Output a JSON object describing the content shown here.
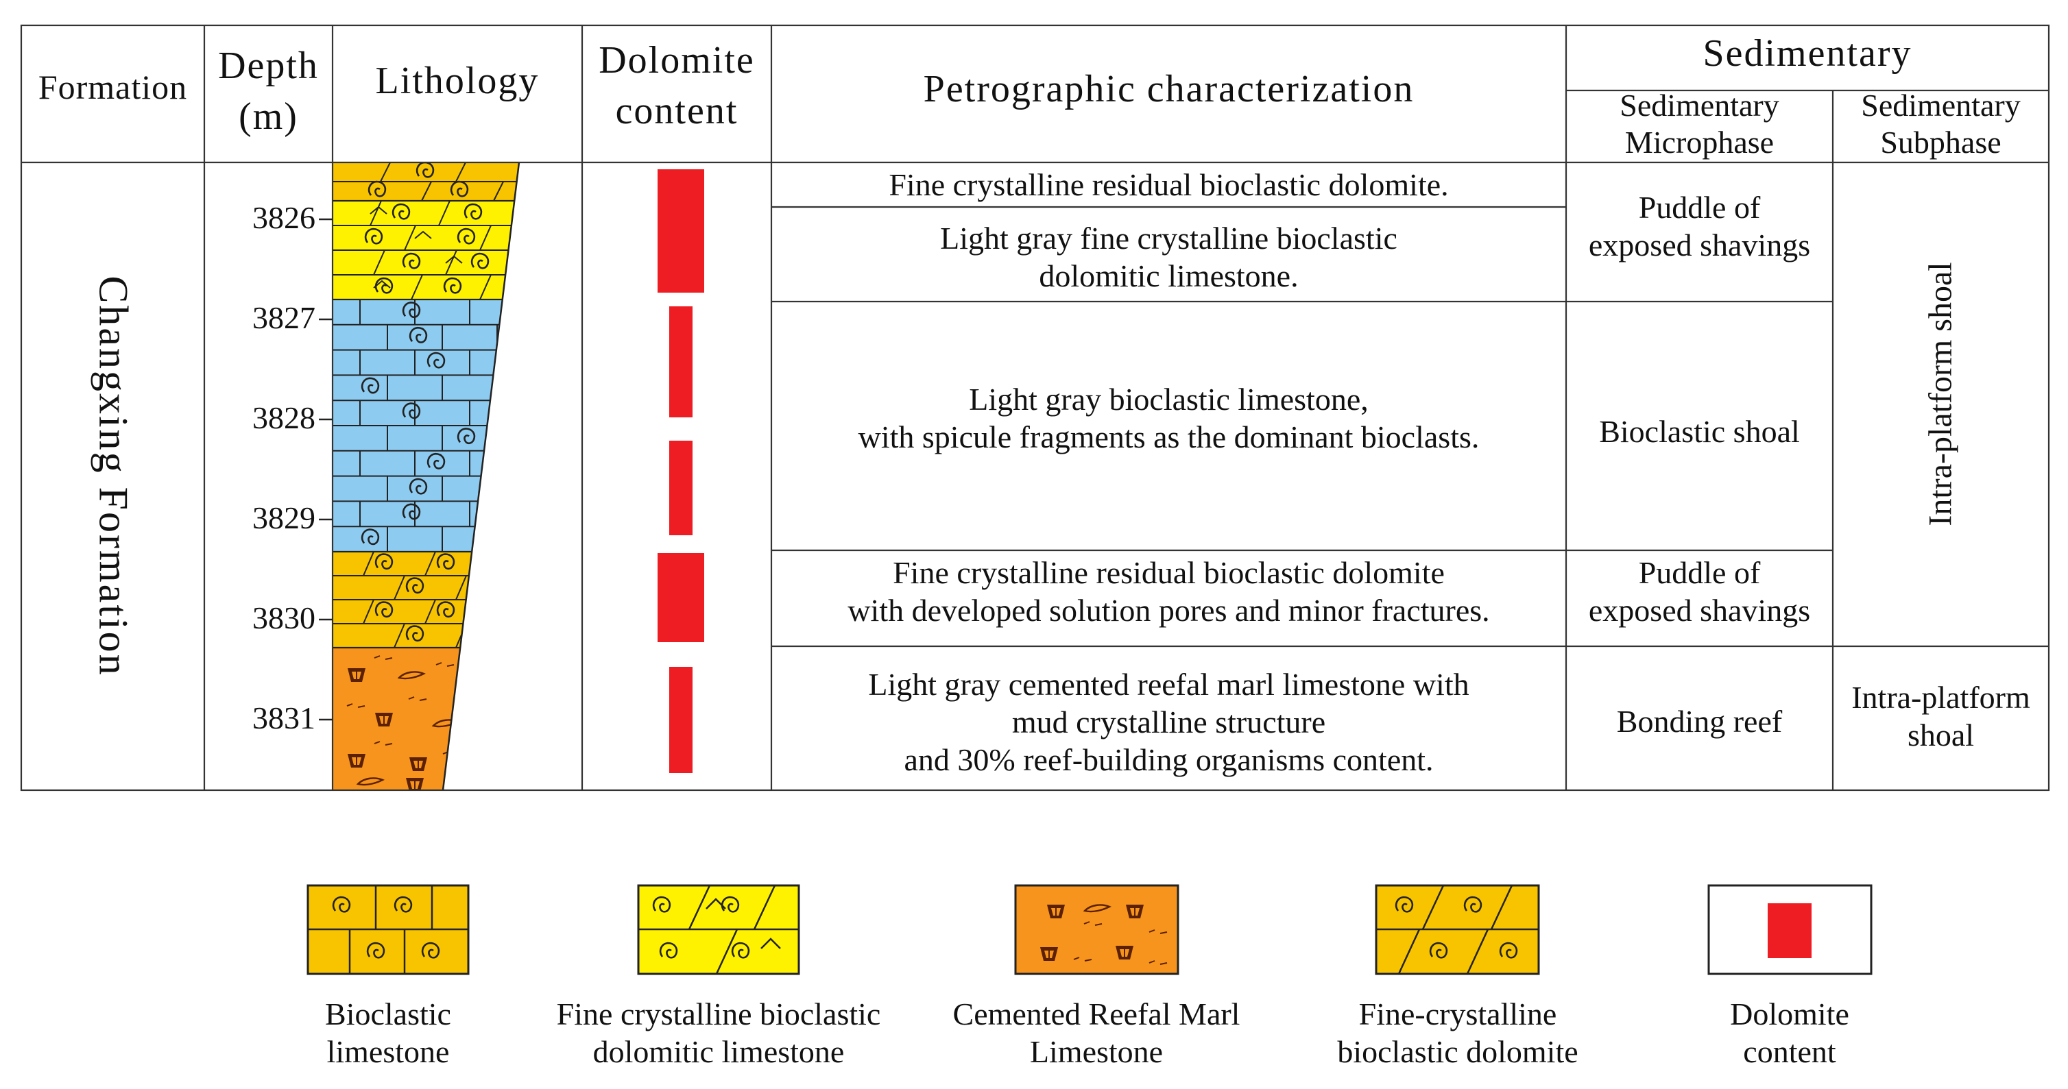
{
  "header": {
    "formation": "Formation",
    "depth_line1": "Depth",
    "depth_line2": "(m)",
    "lithology": "Lithology",
    "dolomite_line1": "Dolomite",
    "dolomite_line2": "content",
    "petrographic": "Petrographic characterization",
    "sedimentary": "Sedimentary",
    "microphase_line1": "Sedimentary",
    "microphase_line2": "Microphase",
    "subphase_line1": "Sedimentary",
    "subphase_line2": "Subphase"
  },
  "formation_name": "Changxing Formation",
  "depth_ticks": [
    "3826",
    "3827",
    "3828",
    "3829",
    "3830",
    "3831"
  ],
  "descriptions": [
    {
      "line1": "Fine crystalline residual bioclastic dolomite.",
      "line2": "",
      "line3": ""
    },
    {
      "line1": "Light gray fine crystalline bioclastic",
      "line2": "dolomitic limestone.",
      "line3": ""
    },
    {
      "line1": "Light gray bioclastic limestone,",
      "line2": "with spicule fragments as the dominant bioclasts.",
      "line3": ""
    },
    {
      "line1": "Fine crystalline residual bioclastic dolomite",
      "line2": "with developed solution pores and minor fractures.",
      "line3": ""
    },
    {
      "line1": "Light gray cemented reefal marl limestone with",
      "line2": "mud crystalline structure",
      "line3": "and 30% reef-building organisms content."
    }
  ],
  "microphases": [
    {
      "line1": "Puddle of",
      "line2": "exposed shavings"
    },
    {
      "line1": "Bioclastic shoal",
      "line2": ""
    },
    {
      "line1": "Puddle of",
      "line2": "exposed shavings"
    },
    {
      "line1": "Bonding reef",
      "line2": ""
    }
  ],
  "subphases": [
    {
      "line1": "Intra-platform shoal",
      "line2": ""
    },
    {
      "line1": "Intra-platform",
      "line2": "shoal"
    }
  ],
  "legend": [
    {
      "line1": "Bioclastic",
      "line2": "limestone"
    },
    {
      "line1": "Fine crystalline bioclastic",
      "line2": "dolomitic limestone"
    },
    {
      "line1": "Cemented Reefal Marl",
      "line2": "Limestone"
    },
    {
      "line1": "Fine-crystalline",
      "line2": "bioclastic dolomite"
    },
    {
      "line1": "Dolomite",
      "line2": "content"
    }
  ],
  "colors": {
    "bioclastic_limestone": "#8ecbf0",
    "bioclastic_limestone_legend": "#f8c400",
    "dolomitic_limestone": "#fff200",
    "dolomite": "#f8c400",
    "reefal_marl": "#f7941d",
    "dolomite_bar": "#ee1d23",
    "line": "#222222"
  }
}
